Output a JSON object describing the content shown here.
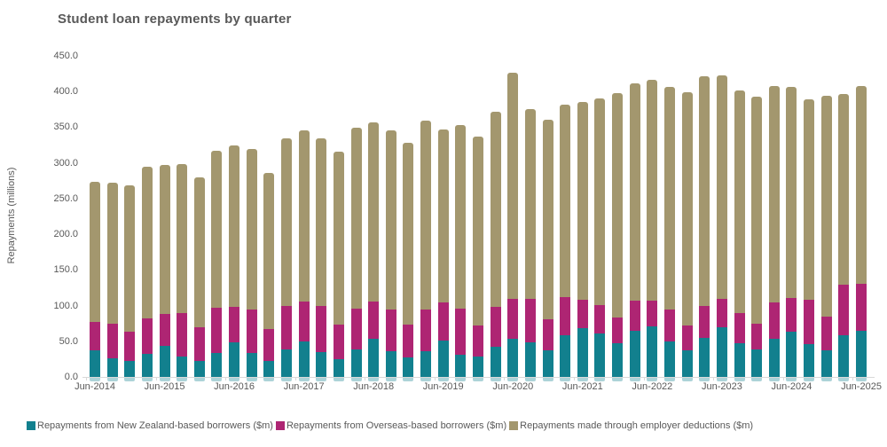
{
  "title": "Student loan repayments by quarter",
  "colors": {
    "nz_borrowers": "#12808E",
    "overseas_borrowers": "#AE2573",
    "employer_deductions": "#A3976E",
    "text": "#595959",
    "axis_line": "#D9D9D9",
    "background": "#FFFFFF"
  },
  "chart_data": {
    "type": "bar",
    "stacked": true,
    "title": "Student loan repayments by quarter",
    "xlabel": "",
    "ylabel": "Repayments (millions)",
    "ylim": [
      0,
      450
    ],
    "ytick_step": 50,
    "ytick_labels": [
      "0.0",
      "50.0",
      "100.0",
      "150.0",
      "200.0",
      "250.0",
      "300.0",
      "350.0",
      "400.0",
      "450.0"
    ],
    "grid": false,
    "legend_position": "bottom",
    "categories": [
      "Jun-2014",
      "Sep-2014",
      "Dec-2014",
      "Mar-2015",
      "Jun-2015",
      "Sep-2015",
      "Dec-2015",
      "Mar-2016",
      "Jun-2016",
      "Sep-2016",
      "Dec-2016",
      "Mar-2017",
      "Jun-2017",
      "Sep-2017",
      "Dec-2017",
      "Mar-2018",
      "Jun-2018",
      "Sep-2018",
      "Dec-2018",
      "Mar-2019",
      "Jun-2019",
      "Sep-2019",
      "Dec-2019",
      "Mar-2020",
      "Jun-2020",
      "Sep-2020",
      "Dec-2020",
      "Mar-2021",
      "Jun-2021",
      "Sep-2021",
      "Dec-2021",
      "Mar-2022",
      "Jun-2022",
      "Sep-2022",
      "Dec-2022",
      "Mar-2023",
      "Jun-2023",
      "Sep-2023",
      "Dec-2023",
      "Mar-2024",
      "Jun-2024",
      "Sep-2024",
      "Dec-2024",
      "Mar-2025",
      "Jun-2025"
    ],
    "xtick_labels_shown": [
      "Jun-2014",
      "Jun-2015",
      "Jun-2016",
      "Jun-2017",
      "Jun-2018",
      "Jun-2019",
      "Jun-2020",
      "Jun-2021",
      "Jun-2022",
      "Jun-2023",
      "Jun-2024",
      "Jun-2025"
    ],
    "series": [
      {
        "name": "Repayments from New Zealand-based borrowers ($m)",
        "color": "#12808E",
        "values": [
          37,
          26,
          23,
          32,
          44,
          29,
          22,
          34,
          48,
          34,
          23,
          39,
          50,
          35,
          25,
          38,
          53,
          36,
          27,
          36,
          51,
          31,
          29,
          42,
          53,
          49,
          37,
          59,
          68,
          61,
          47,
          65,
          71,
          50,
          37,
          55,
          70,
          47,
          39,
          53,
          63,
          46,
          37,
          59,
          65
        ]
      },
      {
        "name": "Repayments from Overseas-based borrowers ($m)",
        "color": "#AE2573",
        "values": [
          40,
          48,
          40,
          50,
          44,
          61,
          48,
          63,
          50,
          60,
          44,
          61,
          56,
          65,
          48,
          58,
          53,
          58,
          46,
          58,
          53,
          65,
          43,
          56,
          56,
          61,
          44,
          53,
          40,
          40,
          36,
          42,
          36,
          44,
          35,
          44,
          40,
          42,
          36,
          51,
          48,
          62,
          47,
          70,
          66
        ]
      },
      {
        "name": "Repayments made through employer deductions ($m)",
        "color": "#A3976E",
        "values": [
          197,
          198,
          206,
          213,
          209,
          208,
          210,
          220,
          227,
          225,
          219,
          234,
          239,
          235,
          243,
          253,
          251,
          251,
          255,
          265,
          243,
          257,
          265,
          274,
          317,
          266,
          280,
          270,
          278,
          289,
          315,
          304,
          310,
          312,
          327,
          323,
          313,
          312,
          318,
          304,
          296,
          281,
          310,
          267,
          277
        ]
      }
    ]
  }
}
